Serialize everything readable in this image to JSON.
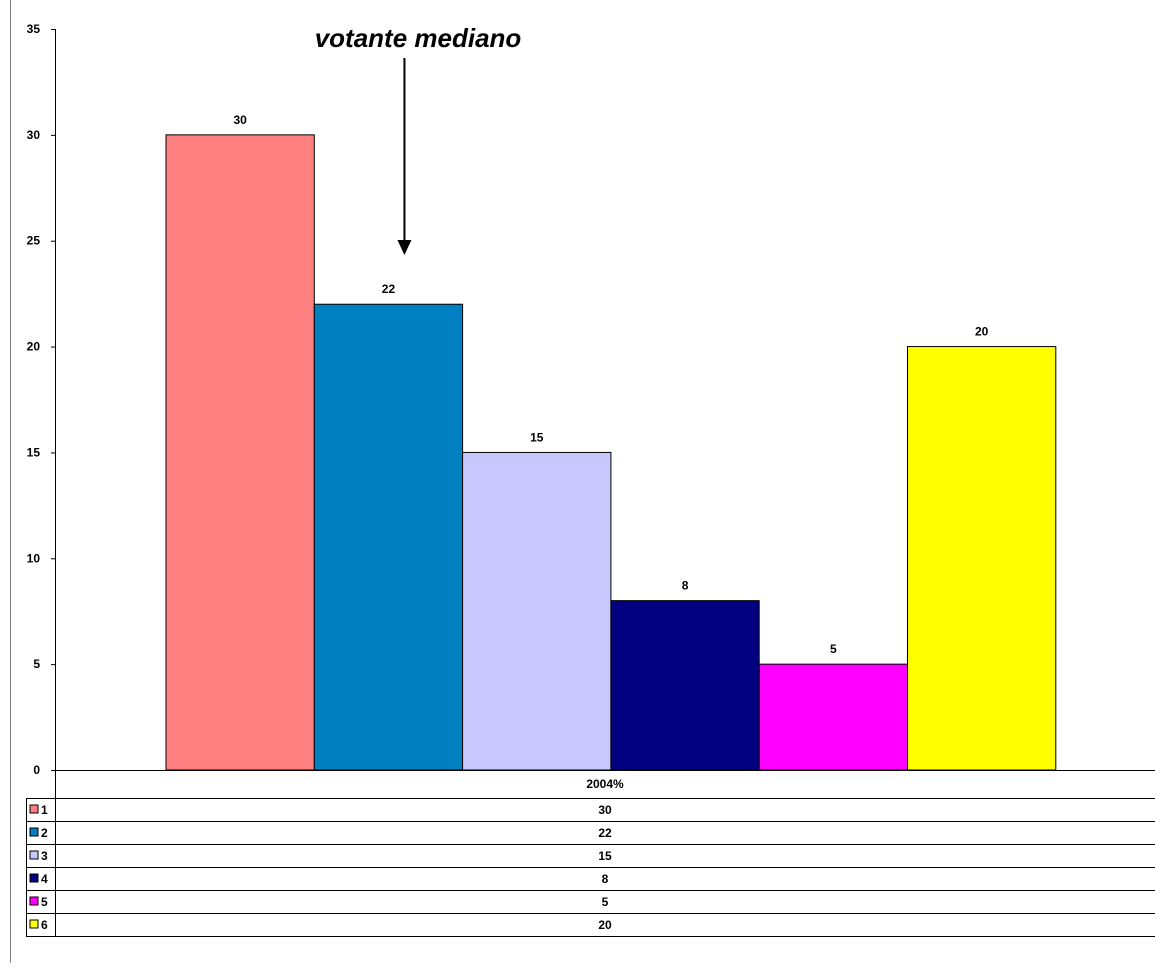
{
  "chart_data": {
    "type": "bar",
    "categories": [
      "1",
      "2",
      "3",
      "4",
      "5",
      "6"
    ],
    "values": [
      30,
      22,
      15,
      8,
      5,
      20
    ],
    "colors": [
      "#FF8080",
      "#0080C0",
      "#C8C8FF",
      "#000080",
      "#FF00FF",
      "#FFFF00"
    ],
    "ylim": [
      0,
      35
    ],
    "yticks": [
      "0",
      "5",
      "10",
      "15",
      "20",
      "25",
      "30",
      "35"
    ],
    "data_labels": [
      "30",
      "22",
      "15",
      "8",
      "5",
      "20"
    ],
    "annotation": {
      "text": "votante mediano",
      "target_category": "2"
    },
    "data_table": {
      "header": "2004%",
      "rows": [
        {
          "key": "1",
          "value": "30"
        },
        {
          "key": "2",
          "value": "22"
        },
        {
          "key": "3",
          "value": "15"
        },
        {
          "key": "4",
          "value": "8"
        },
        {
          "key": "5",
          "value": "5"
        },
        {
          "key": "6",
          "value": "20"
        }
      ]
    },
    "grid": false,
    "legend": "data-table"
  }
}
